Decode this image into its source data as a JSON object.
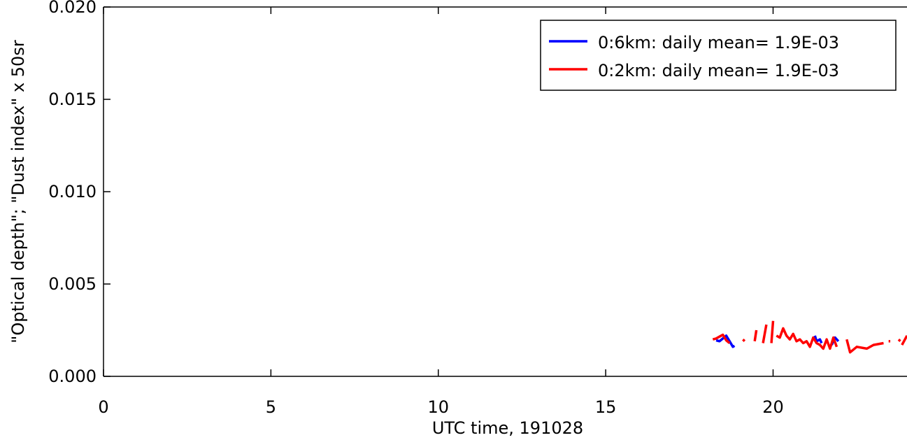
{
  "chart_data": {
    "type": "line",
    "xlabel": "UTC time, 191028",
    "ylabel": "\"Optical depth\"; \"Dust index\" x 50sr",
    "xlim": [
      0,
      24
    ],
    "ylim": [
      0,
      0.02
    ],
    "x_ticks": [
      0,
      5,
      10,
      15,
      20
    ],
    "x_tick_labels": [
      "0",
      "5",
      "10",
      "15",
      "20"
    ],
    "y_ticks": [
      0,
      0.005,
      0.01,
      0.015,
      0.02
    ],
    "y_tick_labels": [
      "0.000",
      "0.005",
      "0.010",
      "0.015",
      "0.020"
    ],
    "legend_position": "top-right",
    "series": [
      {
        "name": "0:6km: daily mean= 1.9E-03",
        "color": "#0000ff",
        "segments": [
          [
            [
              18.3,
              0.00195
            ],
            [
              18.4,
              0.0019
            ],
            [
              18.5,
              0.00205
            ],
            [
              18.6,
              0.0022
            ],
            [
              18.7,
              0.0019
            ],
            [
              18.8,
              0.0016
            ],
            [
              18.85,
              0.00165
            ]
          ],
          [
            [
              21.25,
              0.0022
            ],
            [
              21.3,
              0.0019
            ],
            [
              21.4,
              0.002
            ],
            [
              21.45,
              0.0018
            ]
          ],
          [
            [
              21.75,
              0.0017
            ],
            [
              21.85,
              0.0021
            ],
            [
              21.95,
              0.0019
            ]
          ]
        ]
      },
      {
        "name": "0:2km: daily mean= 1.9E-03",
        "color": "#ff0000",
        "segments": [
          [
            [
              18.2,
              0.002
            ],
            [
              18.3,
              0.00205
            ],
            [
              18.4,
              0.00215
            ],
            [
              18.5,
              0.00225
            ],
            [
              18.6,
              0.00195
            ],
            [
              18.7,
              0.0018
            ]
          ],
          [
            [
              19.1,
              0.0019
            ],
            [
              19.15,
              0.002
            ]
          ],
          [
            [
              19.45,
              0.0019
            ],
            [
              19.5,
              0.0025
            ]
          ],
          [
            [
              19.7,
              0.0018
            ],
            [
              19.8,
              0.0028
            ]
          ],
          [
            [
              19.95,
              0.0018
            ],
            [
              20.0,
              0.003
            ]
          ],
          [
            [
              20.1,
              0.0022
            ],
            [
              20.2,
              0.0021
            ],
            [
              20.3,
              0.0026
            ],
            [
              20.4,
              0.0022
            ],
            [
              20.5,
              0.002
            ],
            [
              20.6,
              0.0023
            ],
            [
              20.7,
              0.0019
            ],
            [
              20.8,
              0.002
            ],
            [
              20.9,
              0.0018
            ],
            [
              21.0,
              0.0019
            ],
            [
              21.1,
              0.0016
            ],
            [
              21.2,
              0.0021
            ],
            [
              21.3,
              0.0018
            ],
            [
              21.4,
              0.0017
            ],
            [
              21.5,
              0.0015
            ],
            [
              21.6,
              0.002
            ],
            [
              21.7,
              0.0015
            ],
            [
              21.8,
              0.0021
            ],
            [
              21.9,
              0.0016
            ]
          ],
          [
            [
              22.2,
              0.002
            ],
            [
              22.3,
              0.0013
            ],
            [
              22.5,
              0.0016
            ],
            [
              22.8,
              0.0015
            ],
            [
              23.0,
              0.0017
            ],
            [
              23.3,
              0.0018
            ]
          ],
          [
            [
              23.45,
              0.0019
            ],
            [
              23.5,
              0.0019
            ]
          ],
          [
            [
              23.75,
              0.0019
            ],
            [
              23.8,
              0.002
            ]
          ],
          [
            [
              23.85,
              0.0017
            ],
            [
              24.0,
              0.0022
            ]
          ]
        ]
      }
    ]
  }
}
